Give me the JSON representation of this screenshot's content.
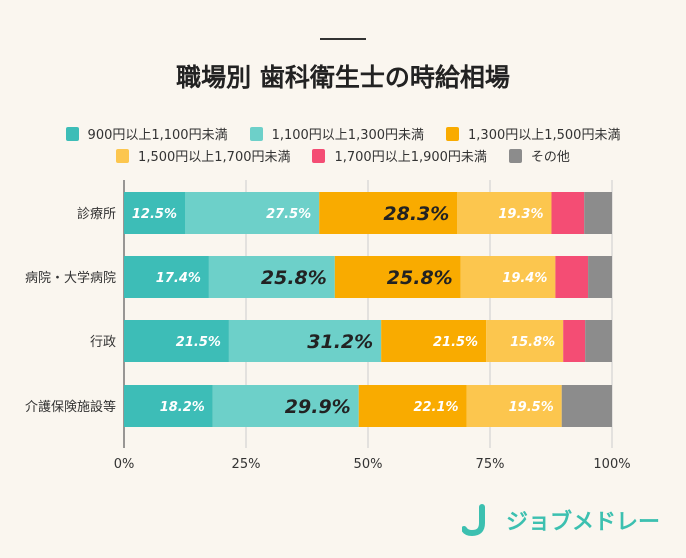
{
  "chart_data": {
    "type": "bar",
    "orientation": "horizontal",
    "stacked": true,
    "title": "職場別 歯科衛生士の時給相場",
    "categories": [
      "診療所",
      "病院・大学病院",
      "行政",
      "介護保険施設等"
    ],
    "series": [
      {
        "name": "900円以上1,100円未満",
        "color": "#3dbdb7",
        "values": [
          12.5,
          17.4,
          21.5,
          18.2
        ],
        "labels": [
          "12.5%",
          "17.4%",
          "21.5%",
          "18.2%"
        ],
        "emphasis": [
          false,
          false,
          false,
          false
        ]
      },
      {
        "name": "1,100円以上1,300円未満",
        "color": "#6dd0c9",
        "values": [
          27.5,
          25.8,
          31.2,
          29.9
        ],
        "labels": [
          "27.5%",
          "25.8%",
          "31.2%",
          "29.9%"
        ],
        "emphasis": [
          false,
          true,
          true,
          true
        ]
      },
      {
        "name": "1,300円以上1,500円未満",
        "color": "#f9ab00",
        "values": [
          28.3,
          25.8,
          21.5,
          22.1
        ],
        "labels": [
          "28.3%",
          "25.8%",
          "21.5%",
          "22.1%"
        ],
        "emphasis": [
          true,
          true,
          false,
          false
        ]
      },
      {
        "name": "1,500円以上1,700円未満",
        "color": "#fcc64e",
        "values": [
          19.3,
          19.4,
          15.8,
          19.5
        ],
        "labels": [
          "19.3%",
          "19.4%",
          "15.8%",
          "19.5%"
        ],
        "emphasis": [
          false,
          false,
          false,
          false
        ]
      },
      {
        "name": "1,700円以上1,900円未満",
        "color": "#f44d74",
        "values": [
          6.7,
          6.7,
          4.5,
          0
        ],
        "labels": [
          "",
          "",
          "",
          ""
        ],
        "emphasis": [
          false,
          false,
          false,
          false
        ]
      },
      {
        "name": "その他",
        "color": "#8c8c8c",
        "values": [
          5.7,
          4.9,
          5.5,
          10.3
        ],
        "labels": [
          "",
          "",
          "",
          ""
        ],
        "emphasis": [
          false,
          false,
          false,
          false
        ]
      }
    ],
    "xlim": [
      0,
      100
    ],
    "xticks": [
      "0%",
      "25%",
      "50%",
      "75%",
      "100%"
    ],
    "grid": true,
    "legend": "top"
  },
  "brand": {
    "name": "ジョブメドレー",
    "color": "#3cc0b0"
  }
}
